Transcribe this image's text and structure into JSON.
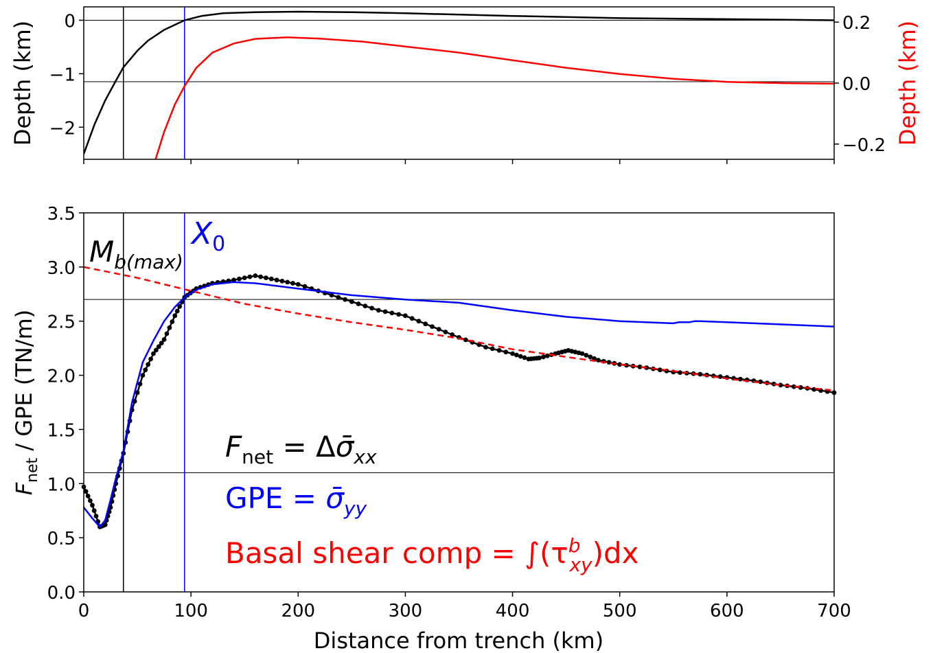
{
  "chart_data": [
    {
      "type": "line",
      "panel": "top",
      "ylabel": "Depth (km)",
      "ylabel_right": "Depth (km)",
      "xlim": [
        0,
        700
      ],
      "ylim": [
        -2.6,
        0.25
      ],
      "ylim_right": [
        -0.25,
        0.25
      ],
      "yticks": [
        0,
        -1,
        -2
      ],
      "ytick_labels": [
        "0",
        "−1",
        "−2"
      ],
      "yticks_right": [
        0.2,
        0.0,
        -0.2
      ],
      "ytick_labels_right": [
        "0.2",
        "0.0",
        "−0.2"
      ],
      "hlines": [
        0,
        -1.15
      ],
      "vlines": [
        {
          "x": 37,
          "color": "#000000"
        },
        {
          "x": 94,
          "color": "#0000ff"
        }
      ],
      "series": [
        {
          "axis": "left",
          "color": "#000000",
          "x": [
            0,
            10,
            20,
            30,
            37,
            50,
            60,
            75,
            94,
            110,
            130,
            160,
            200,
            250,
            300,
            400,
            500,
            600,
            700
          ],
          "y": [
            -2.5,
            -1.95,
            -1.5,
            -1.13,
            -0.88,
            -0.57,
            -0.38,
            -0.18,
            0.0,
            0.08,
            0.13,
            0.15,
            0.16,
            0.15,
            0.13,
            0.08,
            0.04,
            0.02,
            0.0
          ]
        },
        {
          "axis": "right",
          "color": "#ff0000",
          "x": [
            67,
            75,
            85,
            94,
            105,
            120,
            140,
            160,
            190,
            220,
            260,
            300,
            350,
            400,
            450,
            500,
            550,
            600,
            650,
            700
          ],
          "y": [
            -0.25,
            -0.16,
            -0.07,
            -0.01,
            0.05,
            0.1,
            0.13,
            0.145,
            0.15,
            0.146,
            0.136,
            0.12,
            0.1,
            0.075,
            0.05,
            0.03,
            0.014,
            0.004,
            0.0,
            -0.002
          ]
        }
      ]
    },
    {
      "type": "line",
      "panel": "bottom",
      "xlabel": "Distance from trench (km)",
      "ylabel": "F_net / GPE (TN/m)",
      "xlim": [
        0,
        700
      ],
      "ylim": [
        0,
        3.5
      ],
      "xticks": [
        0,
        100,
        200,
        300,
        400,
        500,
        600,
        700
      ],
      "xtick_labels": [
        "0",
        "100",
        "200",
        "300",
        "400",
        "500",
        "600",
        "700"
      ],
      "yticks": [
        0,
        0.5,
        1.0,
        1.5,
        2.0,
        2.5,
        3.0,
        3.5
      ],
      "ytick_labels": [
        "0.0",
        "0.5",
        "1.0",
        "1.5",
        "2.0",
        "2.5",
        "3.0",
        "3.5"
      ],
      "hlines": [
        2.7,
        1.1
      ],
      "vlines": [
        {
          "x": 37,
          "color": "#000000"
        },
        {
          "x": 94,
          "color": "#0000ff"
        }
      ],
      "annotations": [
        {
          "text_main": "M",
          "text_sub": "b(max)",
          "color": "#000000"
        },
        {
          "text_main": "X",
          "text_sub": "0",
          "color": "#0000ff"
        }
      ],
      "legend_text": {
        "fnet": {
          "main": "F",
          "sub": "net",
          "rhs": " = Δ",
          "sigma": "σ̄",
          "idx": "xx",
          "color": "#000000"
        },
        "gpe": {
          "main": "GPE",
          "rhs": " = ",
          "sigma": "σ̄",
          "idx": "yy",
          "color": "#0000ff"
        },
        "basal": {
          "main": "Basal shear comp",
          "rhs": " = ∫(τ",
          "sup": "b",
          "idx": "xy",
          "tail": ")dx",
          "color": "#ff0000"
        }
      },
      "series": [
        {
          "color": "#000000",
          "style": "solid",
          "marker": "circle",
          "x": [
            0,
            8,
            15,
            20,
            25,
            30,
            37,
            45,
            55,
            65,
            75,
            85,
            94,
            105,
            120,
            140,
            160,
            180,
            200,
            225,
            250,
            275,
            300,
            325,
            350,
            375,
            400,
            415,
            425,
            440,
            452,
            465,
            480,
            500,
            525,
            550,
            575,
            600,
            625,
            650,
            675,
            700
          ],
          "y": [
            0.97,
            0.8,
            0.6,
            0.62,
            0.78,
            1.0,
            1.28,
            1.68,
            2.0,
            2.2,
            2.33,
            2.55,
            2.72,
            2.8,
            2.85,
            2.88,
            2.92,
            2.88,
            2.84,
            2.76,
            2.68,
            2.6,
            2.55,
            2.45,
            2.35,
            2.26,
            2.2,
            2.15,
            2.16,
            2.2,
            2.23,
            2.2,
            2.14,
            2.1,
            2.07,
            2.03,
            2.01,
            1.98,
            1.95,
            1.91,
            1.88,
            1.84
          ]
        },
        {
          "color": "#0000ff",
          "style": "solid",
          "marker": "none",
          "x": [
            0,
            8,
            15,
            20,
            25,
            30,
            37,
            45,
            55,
            65,
            75,
            85,
            94,
            105,
            120,
            140,
            160,
            200,
            250,
            300,
            350,
            400,
            450,
            500,
            550,
            555,
            560,
            565,
            570,
            575,
            600,
            650,
            700
          ],
          "y": [
            0.78,
            0.68,
            0.6,
            0.66,
            0.85,
            1.05,
            1.3,
            1.75,
            2.12,
            2.32,
            2.5,
            2.63,
            2.72,
            2.79,
            2.84,
            2.86,
            2.85,
            2.8,
            2.74,
            2.7,
            2.67,
            2.6,
            2.54,
            2.5,
            2.48,
            2.49,
            2.49,
            2.49,
            2.5,
            2.5,
            2.49,
            2.47,
            2.45
          ]
        },
        {
          "color": "#ff0000",
          "style": "dashed",
          "marker": "none",
          "x": [
            0,
            50,
            100,
            150,
            200,
            250,
            300,
            350,
            400,
            450,
            500,
            550,
            600,
            650,
            700
          ],
          "y": [
            3.0,
            2.9,
            2.78,
            2.66,
            2.57,
            2.49,
            2.42,
            2.34,
            2.24,
            2.17,
            2.1,
            2.04,
            1.97,
            1.91,
            1.86
          ]
        }
      ]
    }
  ]
}
